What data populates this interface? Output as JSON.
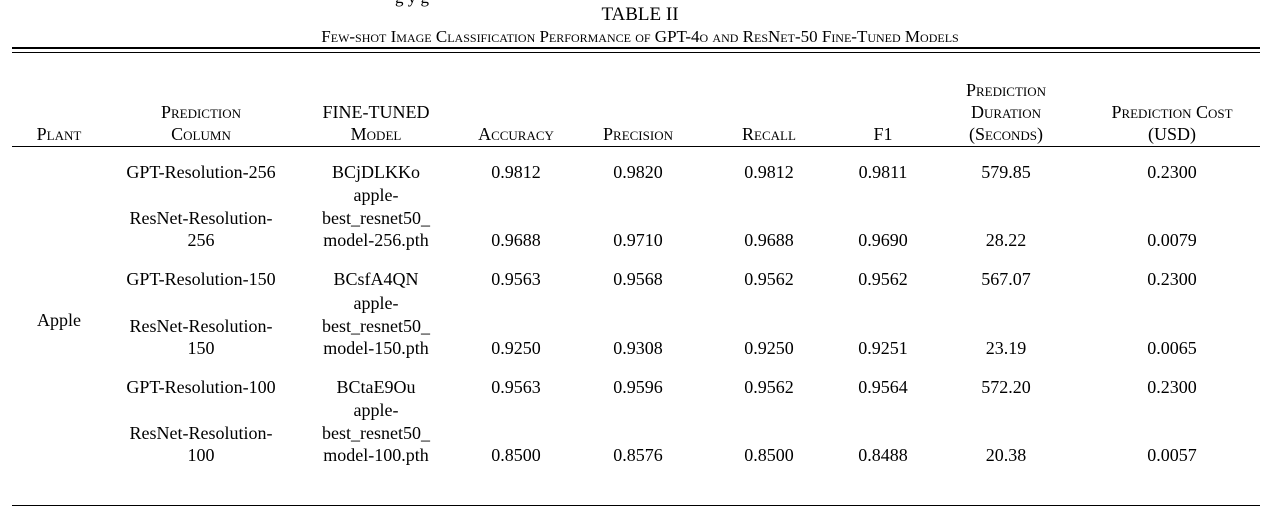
{
  "top_fragment": {
    "left": "g                y                                    g",
    "right": ""
  },
  "table": {
    "number": "TABLE II",
    "title": "Few-shot Image Classification Performance of GPT-4o and ResNet-50 Fine-Tuned Models",
    "headers": {
      "plant": "Plant",
      "prediction_column_1": "Prediction",
      "prediction_column_2": "Column",
      "fine_tuned_1": "FINE-TUNED",
      "fine_tuned_2": "Model",
      "accuracy": "Accuracy",
      "precision": "Precision",
      "recall": "Recall",
      "f1": "F1",
      "duration_1": "Prediction",
      "duration_2": "Duration",
      "duration_3": "(Seconds)",
      "cost_1": "Prediction Cost",
      "cost_2": "(USD)"
    },
    "plant_value": "Apple",
    "rows": [
      {
        "column": [
          "GPT-Resolution-256"
        ],
        "model": [
          "BCjDLKKo"
        ],
        "accuracy": "0.9812",
        "precision": "0.9820",
        "recall": "0.9812",
        "f1": "0.9811",
        "duration": "579.85",
        "cost": "0.2300"
      },
      {
        "column": [
          "ResNet-Resolution-",
          "256"
        ],
        "model": [
          "apple-",
          "best_resnet50_",
          "model-256.pth"
        ],
        "accuracy": "0.9688",
        "precision": "0.9710",
        "recall": "0.9688",
        "f1": "0.9690",
        "duration": "28.22",
        "cost": "0.0079"
      },
      {
        "column": [
          "GPT-Resolution-150"
        ],
        "model": [
          "BCsfA4QN"
        ],
        "accuracy": "0.9563",
        "precision": "0.9568",
        "recall": "0.9562",
        "f1": "0.9562",
        "duration": "567.07",
        "cost": "0.2300"
      },
      {
        "column": [
          "ResNet-Resolution-",
          "150"
        ],
        "model": [
          "apple-",
          "best_resnet50_",
          "model-150.pth"
        ],
        "accuracy": "0.9250",
        "precision": "0.9308",
        "recall": "0.9250",
        "f1": "0.9251",
        "duration": "23.19",
        "cost": "0.0065"
      },
      {
        "column": [
          "GPT-Resolution-100"
        ],
        "model": [
          "BCtaE9Ou"
        ],
        "accuracy": "0.9563",
        "precision": "0.9596",
        "recall": "0.9562",
        "f1": "0.9564",
        "duration": "572.20",
        "cost": "0.2300"
      },
      {
        "column": [
          "ResNet-Resolution-",
          "100"
        ],
        "model": [
          "apple-",
          "best_resnet50_",
          "model-100.pth"
        ],
        "accuracy": "0.8500",
        "precision": "0.8576",
        "recall": "0.8500",
        "f1": "0.8488",
        "duration": "20.38",
        "cost": "0.0057"
      }
    ]
  }
}
